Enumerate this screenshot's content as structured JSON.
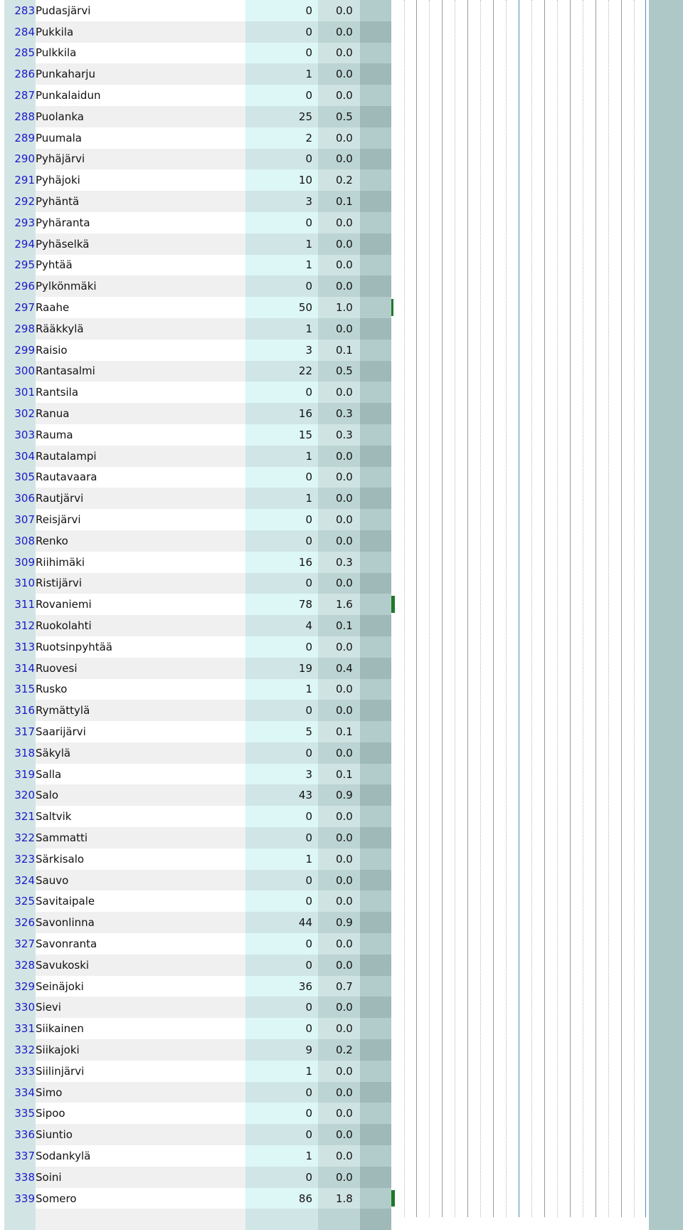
{
  "rows": [
    {
      "rank": "283",
      "name": "Pudasjärvi",
      "count": "0",
      "pct": "0.0"
    },
    {
      "rank": "284",
      "name": "Pukkila",
      "count": "0",
      "pct": "0.0"
    },
    {
      "rank": "285",
      "name": "Pulkkila",
      "count": "0",
      "pct": "0.0"
    },
    {
      "rank": "286",
      "name": "Punkaharju",
      "count": "1",
      "pct": "0.0"
    },
    {
      "rank": "287",
      "name": "Punkalaidun",
      "count": "0",
      "pct": "0.0"
    },
    {
      "rank": "288",
      "name": "Puolanka",
      "count": "25",
      "pct": "0.5"
    },
    {
      "rank": "289",
      "name": "Puumala",
      "count": "2",
      "pct": "0.0"
    },
    {
      "rank": "290",
      "name": "Pyhäjärvi",
      "count": "0",
      "pct": "0.0"
    },
    {
      "rank": "291",
      "name": "Pyhäjoki",
      "count": "10",
      "pct": "0.2"
    },
    {
      "rank": "292",
      "name": "Pyhäntä",
      "count": "3",
      "pct": "0.1"
    },
    {
      "rank": "293",
      "name": "Pyhäranta",
      "count": "0",
      "pct": "0.0"
    },
    {
      "rank": "294",
      "name": "Pyhäselkä",
      "count": "1",
      "pct": "0.0"
    },
    {
      "rank": "295",
      "name": "Pyhtää",
      "count": "1",
      "pct": "0.0"
    },
    {
      "rank": "296",
      "name": "Pylkönmäki",
      "count": "0",
      "pct": "0.0"
    },
    {
      "rank": "297",
      "name": "Raahe",
      "count": "50",
      "pct": "1.0"
    },
    {
      "rank": "298",
      "name": "Rääkkylä",
      "count": "1",
      "pct": "0.0"
    },
    {
      "rank": "299",
      "name": "Raisio",
      "count": "3",
      "pct": "0.1"
    },
    {
      "rank": "300",
      "name": "Rantasalmi",
      "count": "22",
      "pct": "0.5"
    },
    {
      "rank": "301",
      "name": "Rantsila",
      "count": "0",
      "pct": "0.0"
    },
    {
      "rank": "302",
      "name": "Ranua",
      "count": "16",
      "pct": "0.3"
    },
    {
      "rank": "303",
      "name": "Rauma",
      "count": "15",
      "pct": "0.3"
    },
    {
      "rank": "304",
      "name": "Rautalampi",
      "count": "1",
      "pct": "0.0"
    },
    {
      "rank": "305",
      "name": "Rautavaara",
      "count": "0",
      "pct": "0.0"
    },
    {
      "rank": "306",
      "name": "Rautjärvi",
      "count": "1",
      "pct": "0.0"
    },
    {
      "rank": "307",
      "name": "Reisjärvi",
      "count": "0",
      "pct": "0.0"
    },
    {
      "rank": "308",
      "name": "Renko",
      "count": "0",
      "pct": "0.0"
    },
    {
      "rank": "309",
      "name": "Riihimäki",
      "count": "16",
      "pct": "0.3"
    },
    {
      "rank": "310",
      "name": "Ristijärvi",
      "count": "0",
      "pct": "0.0"
    },
    {
      "rank": "311",
      "name": "Rovaniemi",
      "count": "78",
      "pct": "1.6"
    },
    {
      "rank": "312",
      "name": "Ruokolahti",
      "count": "4",
      "pct": "0.1"
    },
    {
      "rank": "313",
      "name": "Ruotsinpyhtää",
      "count": "0",
      "pct": "0.0"
    },
    {
      "rank": "314",
      "name": "Ruovesi",
      "count": "19",
      "pct": "0.4"
    },
    {
      "rank": "315",
      "name": "Rusko",
      "count": "1",
      "pct": "0.0"
    },
    {
      "rank": "316",
      "name": "Rymättylä",
      "count": "0",
      "pct": "0.0"
    },
    {
      "rank": "317",
      "name": "Saarijärvi",
      "count": "5",
      "pct": "0.1"
    },
    {
      "rank": "318",
      "name": "Säkylä",
      "count": "0",
      "pct": "0.0"
    },
    {
      "rank": "319",
      "name": "Salla",
      "count": "3",
      "pct": "0.1"
    },
    {
      "rank": "320",
      "name": "Salo",
      "count": "43",
      "pct": "0.9"
    },
    {
      "rank": "321",
      "name": "Saltvik",
      "count": "0",
      "pct": "0.0"
    },
    {
      "rank": "322",
      "name": "Sammatti",
      "count": "0",
      "pct": "0.0"
    },
    {
      "rank": "323",
      "name": "Särkisalo",
      "count": "1",
      "pct": "0.0"
    },
    {
      "rank": "324",
      "name": "Sauvo",
      "count": "0",
      "pct": "0.0"
    },
    {
      "rank": "325",
      "name": "Savitaipale",
      "count": "0",
      "pct": "0.0"
    },
    {
      "rank": "326",
      "name": "Savonlinna",
      "count": "44",
      "pct": "0.9"
    },
    {
      "rank": "327",
      "name": "Savonranta",
      "count": "0",
      "pct": "0.0"
    },
    {
      "rank": "328",
      "name": "Savukoski",
      "count": "0",
      "pct": "0.0"
    },
    {
      "rank": "329",
      "name": "Seinäjoki",
      "count": "36",
      "pct": "0.7"
    },
    {
      "rank": "330",
      "name": "Sievi",
      "count": "0",
      "pct": "0.0"
    },
    {
      "rank": "331",
      "name": "Siikainen",
      "count": "0",
      "pct": "0.0"
    },
    {
      "rank": "332",
      "name": "Siikajoki",
      "count": "9",
      "pct": "0.2"
    },
    {
      "rank": "333",
      "name": "Siilinjärvi",
      "count": "1",
      "pct": "0.0"
    },
    {
      "rank": "334",
      "name": "Simo",
      "count": "0",
      "pct": "0.0"
    },
    {
      "rank": "335",
      "name": "Sipoo",
      "count": "0",
      "pct": "0.0"
    },
    {
      "rank": "336",
      "name": "Siuntio",
      "count": "0",
      "pct": "0.0"
    },
    {
      "rank": "337",
      "name": "Sodankylä",
      "count": "1",
      "pct": "0.0"
    },
    {
      "rank": "338",
      "name": "Soini",
      "count": "0",
      "pct": "0.0"
    },
    {
      "rank": "339",
      "name": "Somero",
      "count": "86",
      "pct": "1.8"
    },
    {
      "rank": "",
      "name": "",
      "count": "",
      "pct": ""
    }
  ],
  "colors": {
    "rank_link": "#1a1ac8",
    "bar": "#1f7a2a",
    "grid_blue": "#4a90b8"
  }
}
